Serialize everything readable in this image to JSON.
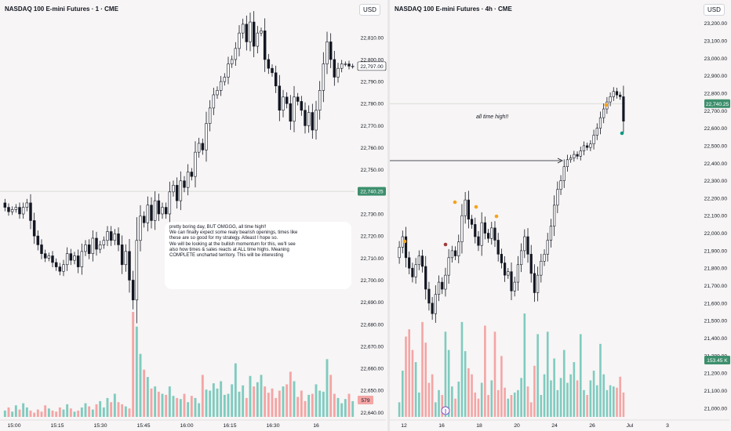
{
  "left_chart": {
    "title": "NASDAQ 100 E-mini Futures · 1 · CME",
    "currency": "USD",
    "last_price_label": "22,797.00",
    "marked_price_label": "22,740.25",
    "volume_label": "579",
    "note_lines": [
      "pretty boring day, BUT OMGGG, all time high!!",
      "We can finally expect some realy bearish openings, times like",
      "these are so good for my strategy. Atleast I hope so.",
      "We will be looking at the bullish momentum for this, we'll see",
      "also how times & sales reacts at ALL time highs. Meaning",
      "COMPLETE uncharted territory. This will be interesting"
    ]
  },
  "right_chart": {
    "title": "NASDAQ 100 E-mini Futures · 4h · CME",
    "currency": "USD",
    "marked_price_label": "22,740.25",
    "volume_label": "153.45 K",
    "annotation": "all time high!!",
    "marker_label": "⟫"
  },
  "colors": {
    "up": "#089981",
    "down": "#f23645",
    "up_volume": "#7fcbbf",
    "down_volume": "#f4a5a5",
    "price_tag": "#3d8f6d"
  },
  "chart_data": [
    {
      "type": "candlestick",
      "title": "NASDAQ 100 E-mini Futures · 1 · CME",
      "y_ticks": [
        "22,810.00",
        "22,800.00",
        "22,790.00",
        "22,780.00",
        "22,770.00",
        "22,760.00",
        "22,750.00",
        "22,740.00",
        "22,730.00",
        "22,720.00",
        "22,710.00",
        "22,700.00",
        "22,690.00",
        "22,680.00",
        "22,670.00",
        "22,660.00",
        "22,650.00",
        "22,640.00"
      ],
      "x_ticks": [
        "15:00",
        "15:15",
        "15:30",
        "15:45",
        "16:00",
        "16:15",
        "16:30",
        "16"
      ],
      "ylim": [
        22638,
        22822
      ],
      "grid": false,
      "x_time_minutes": [
        0,
        1,
        2,
        3,
        4,
        5,
        6,
        7,
        8,
        9,
        10,
        11,
        12,
        13,
        14,
        15,
        16,
        17,
        18,
        19,
        20,
        21,
        22,
        23,
        24,
        25,
        26,
        27,
        28,
        29,
        30,
        31,
        32,
        33,
        34,
        35,
        36,
        37,
        38,
        39,
        40,
        41,
        42,
        43,
        44,
        45,
        46,
        47,
        48,
        49,
        50,
        51,
        52,
        53,
        54,
        55,
        56,
        57,
        58,
        59,
        60,
        61,
        62,
        63,
        64,
        65,
        66,
        67,
        68,
        69,
        70,
        71,
        72,
        73,
        74,
        75,
        76,
        77,
        78,
        79,
        80,
        81,
        82,
        83,
        84,
        85,
        86,
        87,
        88,
        89,
        90,
        91,
        92,
        93,
        94,
        95
      ],
      "close": [
        22733,
        22731,
        22732,
        22733,
        22730,
        22733,
        22735,
        22727,
        22720,
        22716,
        22712,
        22710,
        22711,
        22708,
        22706,
        22704,
        22707,
        22712,
        22709,
        22711,
        22706,
        22713,
        22716,
        22712,
        22719,
        22714,
        22716,
        22718,
        22722,
        22718,
        22721,
        22716,
        22707,
        22713,
        22700,
        22691,
        22718,
        22729,
        22726,
        22734,
        22727,
        22736,
        22730,
        22733,
        22730,
        22740,
        22743,
        22736,
        22745,
        22742,
        22749,
        22747,
        22758,
        22762,
        22759,
        22771,
        22778,
        22784,
        22786,
        22790,
        22792,
        22798,
        22800,
        22805,
        22812,
        22816,
        22808,
        22817,
        22806,
        22812,
        22813,
        22800,
        22796,
        22794,
        22788,
        22777,
        22783,
        22780,
        22772,
        22783,
        22781,
        22777,
        22770,
        22776,
        22768,
        22777,
        22786,
        22798,
        22808,
        22800,
        22792,
        22796,
        22798,
        22798,
        22797,
        22797
      ],
      "volume_relative": [
        6,
        9,
        5,
        11,
        7,
        13,
        9,
        6,
        4,
        7,
        5,
        11,
        8,
        6,
        5,
        9,
        7,
        12,
        8,
        5,
        6,
        9,
        13,
        10,
        7,
        12,
        15,
        9,
        18,
        14,
        22,
        14,
        12,
        10,
        8,
        100,
        86,
        60,
        45,
        38,
        27,
        29,
        24,
        22,
        21,
        29,
        20,
        18,
        17,
        22,
        14,
        20,
        18,
        13,
        40,
        26,
        25,
        32,
        27,
        34,
        21,
        22,
        31,
        51,
        24,
        30,
        18,
        39,
        29,
        33,
        40,
        29,
        23,
        27,
        18,
        25,
        29,
        31,
        43,
        34,
        19,
        25,
        15,
        21,
        22,
        31,
        25,
        24,
        55,
        40,
        22,
        18,
        13,
        17,
        22,
        15
      ],
      "marked_level": 22740.25,
      "last_price": 22797.0
    },
    {
      "type": "candlestick",
      "title": "NASDAQ 100 E-mini Futures · 4h · CME",
      "y_ticks": [
        "23,200.00",
        "23,100.00",
        "23,000.00",
        "22,900.00",
        "22,800.00",
        "22,700.00",
        "22,600.00",
        "22,500.00",
        "22,400.00",
        "22,300.00",
        "22,200.00",
        "22,100.00",
        "22,000.00",
        "21,900.00",
        "21,800.00",
        "21,700.00",
        "21,600.00",
        "21,500.00",
        "21,400.00",
        "21,300.00",
        "21,200.00",
        "21,100.00",
        "21,000.00"
      ],
      "x_ticks": [
        "12",
        "16",
        "18",
        "20",
        "24",
        "26",
        "Jul",
        "3"
      ],
      "ylim": [
        20950,
        23270
      ],
      "grid": false,
      "close": [
        21920,
        21980,
        21860,
        21800,
        21750,
        21820,
        21870,
        21810,
        21680,
        21600,
        21540,
        21650,
        21720,
        21680,
        21760,
        21860,
        21900,
        21870,
        21950,
        22100,
        22190,
        22080,
        22050,
        21980,
        21930,
        22060,
        22000,
        21970,
        22030,
        21960,
        21880,
        21830,
        21760,
        21780,
        21670,
        21720,
        21820,
        21900,
        21980,
        21880,
        21770,
        21660,
        21760,
        21840,
        21880,
        21960,
        22040,
        22160,
        22250,
        22300,
        22380,
        22420,
        22430,
        22450,
        22440,
        22470,
        22500,
        22490,
        22510,
        22560,
        22600,
        22660,
        22710,
        22750,
        22780,
        22810,
        22790,
        22780,
        22640
      ],
      "volume_relative": [
        12,
        38,
        66,
        72,
        55,
        45,
        20,
        78,
        61,
        28,
        35,
        12,
        22,
        18,
        70,
        55,
        25,
        15,
        29,
        78,
        54,
        40,
        35,
        20,
        15,
        28,
        75,
        18,
        30,
        70,
        22,
        50,
        24,
        15,
        18,
        20,
        22,
        32,
        85,
        25,
        12,
        42,
        68,
        18,
        35,
        70,
        30,
        48,
        22,
        32,
        55,
        28,
        35,
        45,
        30,
        68,
        22,
        18,
        30,
        38,
        26,
        60,
        35,
        22,
        26,
        25,
        24,
        33,
        20
      ],
      "annotation": "all time high!!",
      "marked_level": 22740.25
    }
  ]
}
